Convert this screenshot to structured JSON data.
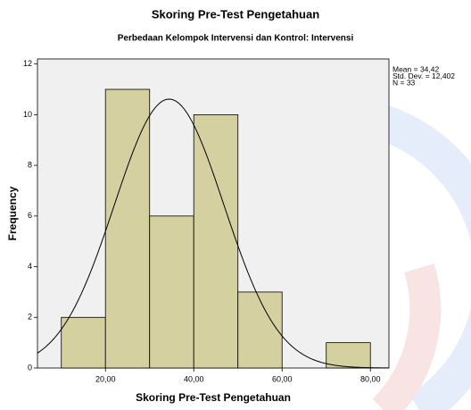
{
  "chart_data": {
    "type": "histogram",
    "title": "Skoring Pre-Test Pengetahuan",
    "subtitle": "Perbedaan Kelompok Intervensi dan Kontrol: Intervensi",
    "xlabel": "Skoring Pre-Test Pengetahuan",
    "ylabel": "Frequency",
    "bins": [
      10,
      20,
      30,
      40,
      50,
      60,
      70,
      80
    ],
    "counts": [
      2,
      11,
      6,
      10,
      3,
      0,
      1
    ],
    "color": "#d4d0a0",
    "curve_color": "#000000",
    "xlim": [
      4.6,
      84.2
    ],
    "ylim": [
      0,
      12.2
    ],
    "xticks": [
      {
        "value": 20,
        "label": "20,00"
      },
      {
        "value": 40,
        "label": "40,00"
      },
      {
        "value": 60,
        "label": "60,00"
      },
      {
        "value": 80,
        "label": "80,00"
      }
    ],
    "yticks": [
      0,
      2,
      4,
      6,
      8,
      10,
      12
    ],
    "stats": [
      {
        "label": "Mean = 34,42",
        "value": 34.42
      },
      {
        "label": "Std. Dev. = 12,402",
        "value": 12.402
      },
      {
        "label": "N = 33",
        "value": 33
      }
    ]
  }
}
